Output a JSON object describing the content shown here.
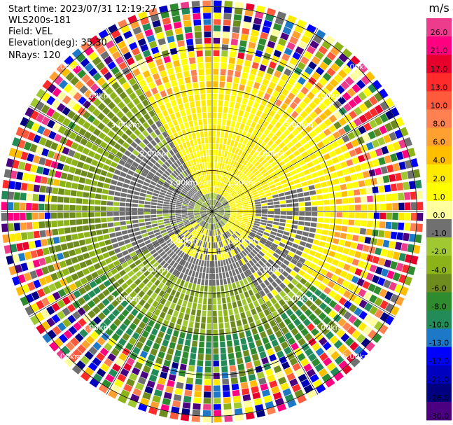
{
  "header": {
    "start_time": "Start time: 2023/07/31 12:19:27",
    "device": "WLS200s-181",
    "field": "Field: VEL",
    "elevation": "Elevation(deg): 35.30",
    "nrays": "NRays: 120"
  },
  "chart_data": {
    "type": "heatmap",
    "subtype": "radar-ppi-polar",
    "field": "VEL",
    "unit": "m/s",
    "n_rays": 120,
    "elevation_deg": 35.3,
    "range_rings_km": [
      1.0,
      2.0,
      3.0,
      4.0,
      5.0
    ],
    "range_labels": [
      "1.00km",
      "2.00km",
      "3.00km",
      "4.00km",
      "5.00km"
    ],
    "spokes_deg": [
      0,
      30,
      60,
      90,
      120,
      150,
      180,
      210,
      240,
      270,
      300,
      330
    ],
    "colorbar": {
      "title": "m/s",
      "tick_labels": [
        "26.0",
        "21.0",
        "17.0",
        "13.0",
        "10.0",
        "8.0",
        "6.0",
        "4.0",
        "2.0",
        "1.0",
        "0.0",
        "-1.0",
        "-2.0",
        "-4.0",
        "-6.0",
        "-8.0",
        "-10.0",
        "-13.0",
        "-17.0",
        "-21.0",
        "-26.0",
        "-30.0"
      ],
      "colors": [
        "#ee3c8c",
        "#ff0080",
        "#e8002d",
        "#ff2a2a",
        "#ff5a3c",
        "#ff8050",
        "#ffa030",
        "#ffbf00",
        "#ffea00",
        "#ffff00",
        "#ffffa0",
        "#707070",
        "#a0c830",
        "#8cb418",
        "#6e8c1e",
        "#2e8b2e",
        "#228b57",
        "#1e78c8",
        "#0000ff",
        "#0000c0",
        "#000080",
        "#4b0082"
      ]
    },
    "pattern": {
      "near_range_km": 1.5,
      "near_field": "yellow northeast / gray west, mixed green southwest",
      "mid_field": "yellow northeast quadrant, gray and olive green southwest quadrant",
      "far_field_km": 4.2,
      "far_field": "noisy multicolor speckle beyond about 4 km"
    }
  },
  "colors": {
    "ring": "#000000",
    "ring_label": "#ffffff",
    "background": "#ffffff"
  }
}
